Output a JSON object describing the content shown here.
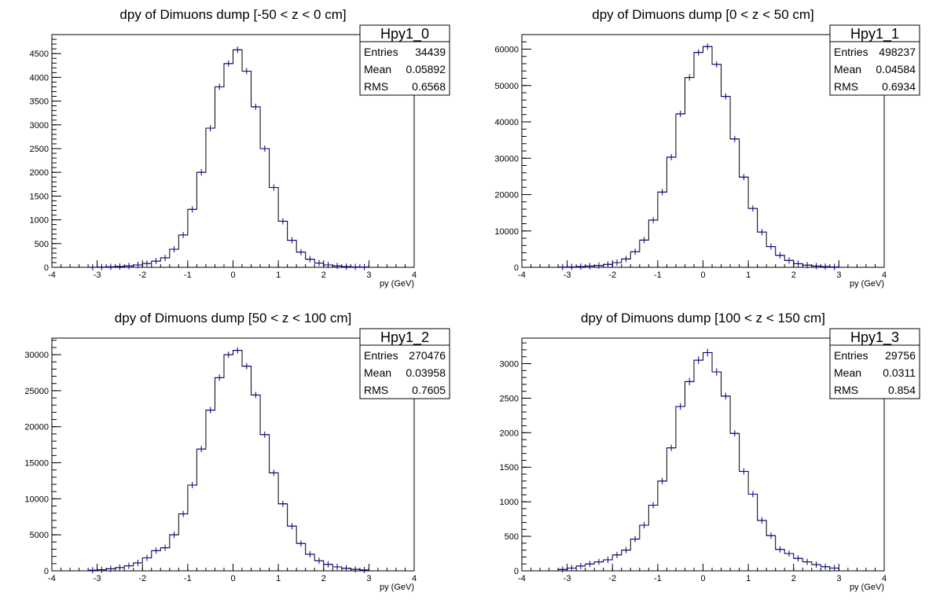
{
  "chart_data": [
    {
      "type": "bar",
      "histogram": true,
      "title": "dpy of Dimuons dump [-50 < z < 0 cm]",
      "xlabel": "py (GeV)",
      "ylabel": "",
      "xlim": [
        -4,
        4
      ],
      "ylim": [
        0,
        4900
      ],
      "x_ticks": [
        "-4",
        "-3",
        "-2",
        "-1",
        "0",
        "1",
        "2",
        "3",
        "4"
      ],
      "y_ticks": [
        "0",
        "500",
        "1000",
        "1500",
        "2000",
        "2500",
        "3000",
        "3500",
        "4000",
        "4500"
      ],
      "bin_width": 0.2,
      "x": [
        -3.1,
        -2.9,
        -2.7,
        -2.5,
        -2.3,
        -2.1,
        -1.9,
        -1.7,
        -1.5,
        -1.3,
        -1.1,
        -0.9,
        -0.7,
        -0.5,
        -0.3,
        -0.1,
        0.1,
        0.3,
        0.5,
        0.7,
        0.9,
        1.1,
        1.3,
        1.5,
        1.7,
        1.9,
        2.1,
        2.3,
        2.5,
        2.7,
        2.9
      ],
      "values": [
        2,
        5,
        10,
        18,
        28,
        50,
        80,
        130,
        200,
        380,
        680,
        1220,
        2000,
        2930,
        3800,
        4290,
        4580,
        4130,
        3380,
        2500,
        1680,
        970,
        570,
        320,
        170,
        90,
        50,
        30,
        15,
        8,
        4
      ],
      "stats": {
        "name": "Hpy1_0",
        "entries": "34439",
        "mean": "0.05892",
        "rms": "0.6568"
      }
    },
    {
      "type": "bar",
      "histogram": true,
      "title": "dpy of Dimuons dump [0 < z < 50 cm]",
      "xlabel": "py (GeV)",
      "ylabel": "",
      "xlim": [
        -4,
        4
      ],
      "ylim": [
        0,
        64000
      ],
      "x_ticks": [
        "-4",
        "-3",
        "-2",
        "-1",
        "0",
        "1",
        "2",
        "3",
        "4"
      ],
      "y_ticks": [
        "0",
        "10000",
        "20000",
        "30000",
        "40000",
        "50000",
        "60000"
      ],
      "bin_width": 0.2,
      "x": [
        -3.1,
        -2.9,
        -2.7,
        -2.5,
        -2.3,
        -2.1,
        -1.9,
        -1.7,
        -1.5,
        -1.3,
        -1.1,
        -0.9,
        -0.7,
        -0.5,
        -0.3,
        -0.1,
        0.1,
        0.3,
        0.5,
        0.7,
        0.9,
        1.1,
        1.3,
        1.5,
        1.7,
        1.9,
        2.1,
        2.3,
        2.5,
        2.7,
        2.9
      ],
      "values": [
        50,
        120,
        220,
        350,
        500,
        800,
        1300,
        2300,
        4300,
        7500,
        13000,
        20700,
        30300,
        42200,
        52200,
        59100,
        60700,
        55800,
        47000,
        35300,
        24800,
        16200,
        9700,
        5700,
        3300,
        1900,
        1000,
        600,
        350,
        200,
        100
      ],
      "stats": {
        "name": "Hpy1_1",
        "entries": "498237",
        "mean": "0.04584",
        "rms": "0.6934"
      }
    },
    {
      "type": "bar",
      "histogram": true,
      "title": "dpy of Dimuons dump [50 < z < 100 cm]",
      "xlabel": "py (GeV)",
      "ylabel": "",
      "xlim": [
        -4,
        4
      ],
      "ylim": [
        0,
        32300
      ],
      "x_ticks": [
        "-4",
        "-3",
        "-2",
        "-1",
        "0",
        "1",
        "2",
        "3",
        "4"
      ],
      "y_ticks": [
        "0",
        "5000",
        "10000",
        "15000",
        "20000",
        "25000",
        "30000"
      ],
      "bin_width": 0.2,
      "x": [
        -3.1,
        -2.9,
        -2.7,
        -2.5,
        -2.3,
        -2.1,
        -1.9,
        -1.7,
        -1.5,
        -1.3,
        -1.1,
        -0.9,
        -0.7,
        -0.5,
        -0.3,
        -0.1,
        0.1,
        0.3,
        0.5,
        0.7,
        0.9,
        1.1,
        1.3,
        1.5,
        1.7,
        1.9,
        2.1,
        2.3,
        2.5,
        2.7,
        2.9
      ],
      "values": [
        80,
        150,
        280,
        450,
        700,
        1100,
        1800,
        2800,
        3200,
        5000,
        7900,
        11900,
        16900,
        22300,
        26800,
        30000,
        30600,
        28400,
        24400,
        18900,
        13600,
        9300,
        6200,
        3800,
        2300,
        1400,
        900,
        550,
        350,
        200,
        120
      ],
      "stats": {
        "name": "Hpy1_2",
        "entries": "270476",
        "mean": "0.03958",
        "rms": "0.7605"
      }
    },
    {
      "type": "bar",
      "histogram": true,
      "title": "dpy of Dimuons dump [100 < z < 150 cm]",
      "xlabel": "py (GeV)",
      "ylabel": "",
      "xlim": [
        -4,
        4
      ],
      "ylim": [
        0,
        3370
      ],
      "x_ticks": [
        "-4",
        "-3",
        "-2",
        "-1",
        "0",
        "1",
        "2",
        "3",
        "4"
      ],
      "y_ticks": [
        "0",
        "500",
        "1000",
        "1500",
        "2000",
        "2500",
        "3000"
      ],
      "bin_width": 0.2,
      "x": [
        -3.1,
        -2.9,
        -2.7,
        -2.5,
        -2.3,
        -2.1,
        -1.9,
        -1.7,
        -1.5,
        -1.3,
        -1.1,
        -0.9,
        -0.7,
        -0.5,
        -0.3,
        -0.1,
        0.1,
        0.3,
        0.5,
        0.7,
        0.9,
        1.1,
        1.3,
        1.5,
        1.7,
        1.9,
        2.1,
        2.3,
        2.5,
        2.7,
        2.9
      ],
      "values": [
        20,
        40,
        70,
        100,
        130,
        160,
        230,
        300,
        460,
        660,
        950,
        1300,
        1780,
        2380,
        2740,
        3050,
        3160,
        2880,
        2530,
        1990,
        1440,
        1110,
        730,
        510,
        310,
        250,
        180,
        130,
        90,
        60,
        40
      ],
      "stats": {
        "name": "Hpy1_3",
        "entries": "29756",
        "mean": "0.0311",
        "rms": "0.854"
      }
    }
  ],
  "stat_labels": {
    "entries": "Entries",
    "mean": "Mean",
    "rms": "RMS"
  },
  "colors": {
    "marker": "#00008b",
    "axis": "#000000",
    "hist": "#000000"
  }
}
